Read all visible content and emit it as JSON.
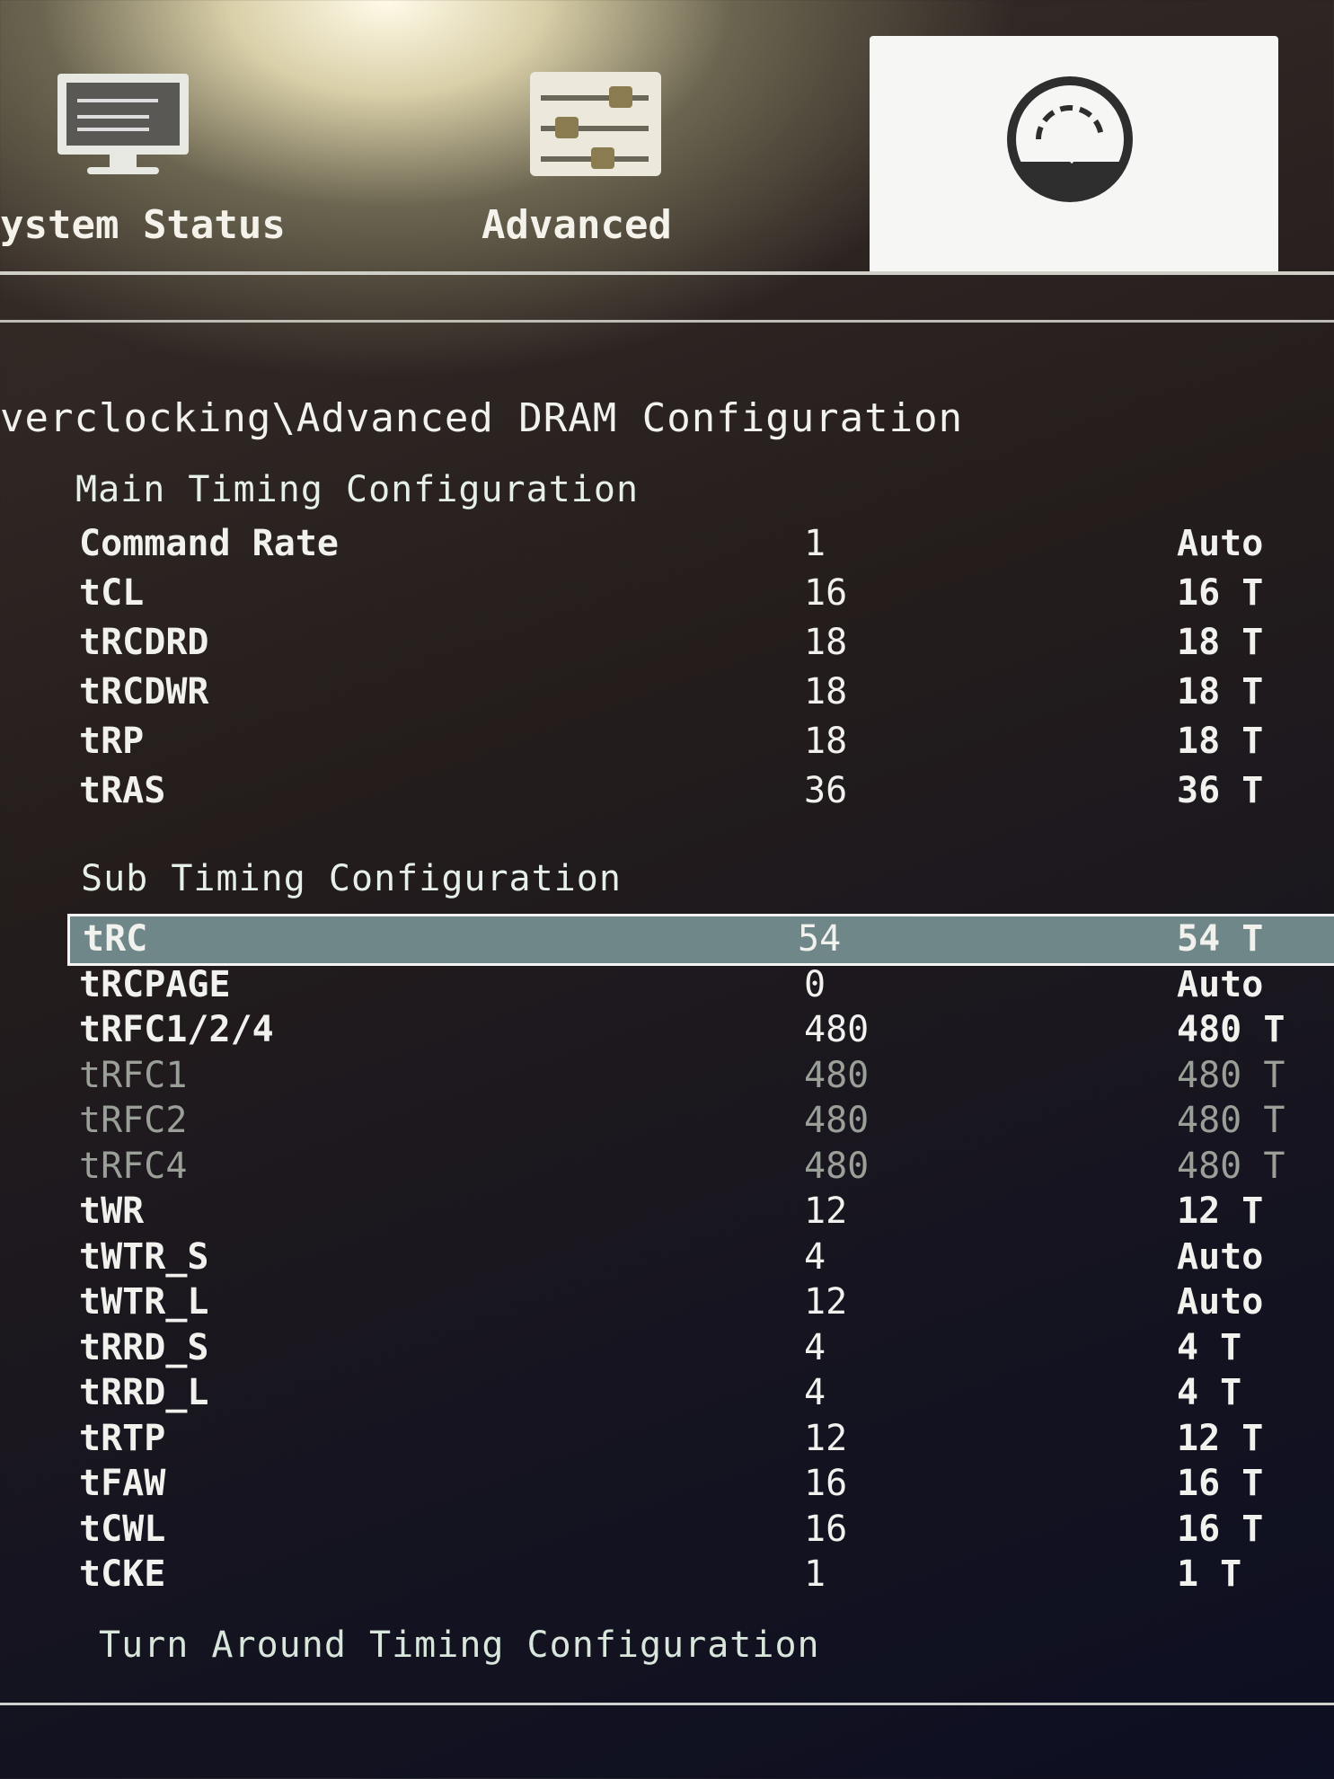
{
  "tabs": [
    {
      "label": "ystem Status",
      "icon": "monitor-icon"
    },
    {
      "label": "Advanced",
      "icon": "sliders-icon"
    },
    {
      "label": "",
      "icon": "speedometer-icon",
      "active": true
    }
  ],
  "breadcrumb": "verclocking\\Advanced DRAM Configuration",
  "main_section": {
    "title": "Main Timing Configuration",
    "rows": [
      {
        "label": "Command Rate",
        "current": "1",
        "setting": "Auto"
      },
      {
        "label": "tCL",
        "current": "16",
        "setting": "16 T"
      },
      {
        "label": "tRCDRD",
        "current": "18",
        "setting": "18 T"
      },
      {
        "label": "tRCDWR",
        "current": "18",
        "setting": "18 T"
      },
      {
        "label": "tRP",
        "current": "18",
        "setting": "18 T"
      },
      {
        "label": "tRAS",
        "current": "36",
        "setting": "36 T"
      }
    ]
  },
  "sub_section": {
    "title": "Sub Timing Configuration",
    "rows": [
      {
        "label": "tRC",
        "current": "54",
        "setting": "54 T",
        "selected": true
      },
      {
        "label": "tRCPAGE",
        "current": "0",
        "setting": "Auto"
      },
      {
        "label": "tRFC1/2/4",
        "current": "480",
        "setting": "480 T"
      },
      {
        "label": "tRFC1",
        "current": "480",
        "setting": "480 T",
        "disabled": true
      },
      {
        "label": "tRFC2",
        "current": "480",
        "setting": "480 T",
        "disabled": true
      },
      {
        "label": "tRFC4",
        "current": "480",
        "setting": "480 T",
        "disabled": true
      },
      {
        "label": "tWR",
        "current": "12",
        "setting": "12 T"
      },
      {
        "label": "tWTR_S",
        "current": "4",
        "setting": "Auto"
      },
      {
        "label": "tWTR_L",
        "current": "12",
        "setting": "Auto"
      },
      {
        "label": "tRRD_S",
        "current": "4",
        "setting": "4 T"
      },
      {
        "label": "tRRD_L",
        "current": "4",
        "setting": "4 T"
      },
      {
        "label": "tRTP",
        "current": "12",
        "setting": "12 T"
      },
      {
        "label": "tFAW",
        "current": "16",
        "setting": "16 T"
      },
      {
        "label": "tCWL",
        "current": "16",
        "setting": "16 T"
      },
      {
        "label": "tCKE",
        "current": "1",
        "setting": "1 T"
      }
    ]
  },
  "turn_around_section": {
    "title": "Turn Around Timing Configuration"
  }
}
